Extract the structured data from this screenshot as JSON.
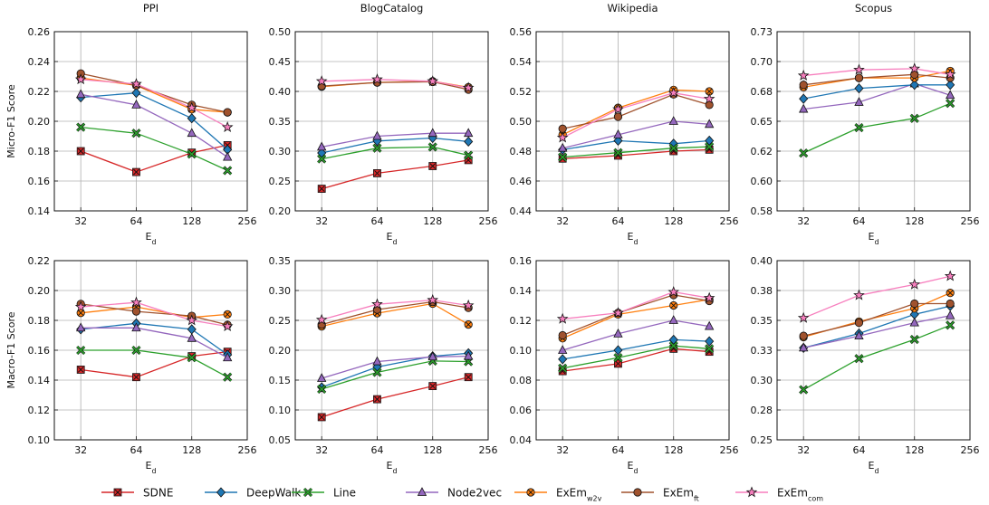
{
  "series_styles": [
    {
      "name": "SDNE",
      "color": "#d62728",
      "marker": "square-x"
    },
    {
      "name": "DeepWalk",
      "color": "#1f77b4",
      "marker": "diamond"
    },
    {
      "name": "Line",
      "color": "#2ca02c",
      "marker": "x"
    },
    {
      "name": "Node2vec",
      "color": "#9467bd",
      "marker": "triangle"
    },
    {
      "name": "ExEm",
      "sub": "w2v",
      "color": "#ff7f0e",
      "marker": "circle-x"
    },
    {
      "name": "ExEm",
      "sub": "ft",
      "color": "#a0522d",
      "marker": "circle"
    },
    {
      "name": "ExEm",
      "sub": "com",
      "color": "#f77fbe",
      "marker": "star"
    }
  ],
  "xlabel": {
    "main": "E",
    "sub": "d"
  },
  "chart_data": [
    {
      "type": "line",
      "title": "PPI",
      "ylabel": "Micro-F1 Score",
      "x": [
        32,
        64,
        128,
        200
      ],
      "xticks": [
        32,
        64,
        128,
        256
      ],
      "xscale": "log2",
      "xlim": [
        23,
        256
      ],
      "ylim": [
        0.14,
        0.26
      ],
      "yticks": [
        "0.14",
        "0.16",
        "0.18",
        "0.20",
        "0.22",
        "0.24",
        "0.26"
      ],
      "grid": true,
      "series": [
        {
          "name": "SDNE",
          "values": [
            0.18,
            0.166,
            0.179,
            0.184
          ]
        },
        {
          "name": "DeepWalk",
          "values": [
            0.216,
            0.219,
            0.202,
            0.181
          ]
        },
        {
          "name": "Line",
          "values": [
            0.196,
            0.192,
            0.178,
            0.167
          ]
        },
        {
          "name": "Node2vec",
          "values": [
            0.218,
            0.211,
            0.192,
            0.176
          ]
        },
        {
          "name": "ExEm w2v",
          "values": [
            0.229,
            0.224,
            0.208,
            0.206
          ]
        },
        {
          "name": "ExEm ft",
          "values": [
            0.232,
            0.224,
            0.211,
            0.206
          ]
        },
        {
          "name": "ExEm com",
          "values": [
            0.228,
            0.225,
            0.209,
            0.196
          ]
        }
      ]
    },
    {
      "type": "line",
      "title": "BlogCatalog",
      "ylabel": "",
      "x": [
        32,
        64,
        128,
        200
      ],
      "xticks": [
        32,
        64,
        128,
        256
      ],
      "xscale": "log2",
      "xlim": [
        23,
        256
      ],
      "ylim": [
        0.2,
        0.5
      ],
      "yticks": [
        "0.20",
        "0.25",
        "0.30",
        "0.35",
        "0.40",
        "0.45",
        "0.50"
      ],
      "grid": true,
      "series": [
        {
          "name": "SDNE",
          "values": [
            0.237,
            0.263,
            0.275,
            0.285
          ]
        },
        {
          "name": "DeepWalk",
          "values": [
            0.297,
            0.317,
            0.322,
            0.316
          ]
        },
        {
          "name": "Line",
          "values": [
            0.287,
            0.305,
            0.307,
            0.293
          ]
        },
        {
          "name": "Node2vec",
          "values": [
            0.307,
            0.325,
            0.33,
            0.33
          ]
        },
        {
          "name": "ExEm w2v",
          "values": [
            0.408,
            0.415,
            0.417,
            0.407
          ]
        },
        {
          "name": "ExEm ft",
          "values": [
            0.409,
            0.415,
            0.416,
            0.403
          ]
        },
        {
          "name": "ExEm com",
          "values": [
            0.417,
            0.42,
            0.417,
            0.406
          ]
        }
      ]
    },
    {
      "type": "line",
      "title": "Wikipedia",
      "ylabel": "",
      "x": [
        32,
        64,
        128,
        200
      ],
      "xticks": [
        32,
        64,
        128,
        256
      ],
      "xscale": "log2",
      "xlim": [
        23,
        256
      ],
      "ylim": [
        0.44,
        0.56
      ],
      "yticks": [
        "0.44",
        "0.46",
        "0.48",
        "0.50",
        "0.52",
        "0.54",
        "0.56"
      ],
      "grid": true,
      "series": [
        {
          "name": "SDNE",
          "values": [
            0.475,
            0.477,
            0.48,
            0.481
          ]
        },
        {
          "name": "DeepWalk",
          "values": [
            0.481,
            0.487,
            0.485,
            0.487
          ]
        },
        {
          "name": "Line",
          "values": [
            0.476,
            0.479,
            0.482,
            0.483
          ]
        },
        {
          "name": "Node2vec",
          "values": [
            0.482,
            0.491,
            0.5,
            0.498
          ]
        },
        {
          "name": "ExEm w2v",
          "values": [
            0.491,
            0.509,
            0.521,
            0.52
          ]
        },
        {
          "name": "ExEm ft",
          "values": [
            0.495,
            0.503,
            0.518,
            0.511
          ]
        },
        {
          "name": "ExEm com",
          "values": [
            0.489,
            0.508,
            0.519,
            0.515
          ]
        }
      ]
    },
    {
      "type": "line",
      "title": "Scopus",
      "ylabel": "",
      "x": [
        32,
        64,
        128,
        200
      ],
      "xticks": [
        32,
        64,
        128,
        256
      ],
      "xscale": "log2",
      "xlim": [
        23,
        256
      ],
      "ylim": [
        0.575,
        0.73
      ],
      "yticks": [
        "0.58",
        "0.60",
        "0.62",
        "0.65",
        "0.68",
        "0.70",
        "0.73"
      ],
      "grid": true,
      "series": [
        {
          "name": "Line",
          "values": [
            0.625,
            0.647,
            0.655,
            0.668
          ]
        },
        {
          "name": "Node2vec",
          "values": [
            0.663,
            0.669,
            0.685,
            0.675
          ]
        },
        {
          "name": "DeepWalk",
          "values": [
            0.672,
            0.681,
            0.684,
            0.684
          ]
        },
        {
          "name": "ExEm w2v",
          "values": [
            0.682,
            0.69,
            0.69,
            0.696
          ]
        },
        {
          "name": "ExEm ft",
          "values": [
            0.684,
            0.69,
            0.693,
            0.69
          ]
        },
        {
          "name": "ExEm com",
          "values": [
            0.692,
            0.697,
            0.698,
            0.693
          ]
        }
      ]
    },
    {
      "type": "line",
      "title": "",
      "ylabel": "Macro-F1 Score",
      "x": [
        32,
        64,
        128,
        200
      ],
      "xticks": [
        32,
        64,
        128,
        256
      ],
      "xscale": "log2",
      "xlim": [
        23,
        256
      ],
      "ylim": [
        0.1,
        0.22
      ],
      "yticks": [
        "0.10",
        "0.12",
        "0.14",
        "0.16",
        "0.18",
        "0.20",
        "0.22"
      ],
      "grid": true,
      "series": [
        {
          "name": "SDNE",
          "values": [
            0.147,
            0.142,
            0.156,
            0.159
          ]
        },
        {
          "name": "DeepWalk",
          "values": [
            0.174,
            0.178,
            0.174,
            0.157
          ]
        },
        {
          "name": "Line",
          "values": [
            0.16,
            0.16,
            0.155,
            0.142
          ]
        },
        {
          "name": "Node2vec",
          "values": [
            0.175,
            0.175,
            0.168,
            0.155
          ]
        },
        {
          "name": "ExEm w2v",
          "values": [
            0.185,
            0.189,
            0.182,
            0.184
          ]
        },
        {
          "name": "ExEm ft",
          "values": [
            0.191,
            0.186,
            0.183,
            0.177
          ]
        },
        {
          "name": "ExEm com",
          "values": [
            0.189,
            0.192,
            0.18,
            0.176
          ]
        }
      ]
    },
    {
      "type": "line",
      "title": "",
      "ylabel": "",
      "x": [
        32,
        64,
        128,
        200
      ],
      "xticks": [
        32,
        64,
        128,
        256
      ],
      "xscale": "log2",
      "xlim": [
        23,
        256
      ],
      "ylim": [
        0.05,
        0.35
      ],
      "yticks": [
        "0.05",
        "0.10",
        "0.15",
        "0.20",
        "0.25",
        "0.30",
        "0.35"
      ],
      "grid": true,
      "series": [
        {
          "name": "SDNE",
          "values": [
            0.088,
            0.118,
            0.14,
            0.155
          ]
        },
        {
          "name": "DeepWalk",
          "values": [
            0.138,
            0.172,
            0.19,
            0.195
          ]
        },
        {
          "name": "Line",
          "values": [
            0.135,
            0.163,
            0.182,
            0.181
          ]
        },
        {
          "name": "Node2vec",
          "values": [
            0.153,
            0.181,
            0.189,
            0.19
          ]
        },
        {
          "name": "ExEm w2v",
          "values": [
            0.24,
            0.262,
            0.278,
            0.243
          ]
        },
        {
          "name": "ExEm ft",
          "values": [
            0.243,
            0.268,
            0.281,
            0.271
          ]
        },
        {
          "name": "ExEm com",
          "values": [
            0.251,
            0.277,
            0.284,
            0.275
          ]
        }
      ]
    },
    {
      "type": "line",
      "title": "",
      "ylabel": "",
      "x": [
        32,
        64,
        128,
        200
      ],
      "xticks": [
        32,
        64,
        128,
        256
      ],
      "xscale": "log2",
      "xlim": [
        23,
        256
      ],
      "ylim": [
        0.04,
        0.16
      ],
      "yticks": [
        "0.04",
        "0.06",
        "0.08",
        "0.10",
        "0.12",
        "0.14",
        "0.16"
      ],
      "grid": true,
      "series": [
        {
          "name": "SDNE",
          "values": [
            0.086,
            0.091,
            0.101,
            0.099
          ]
        },
        {
          "name": "DeepWalk",
          "values": [
            0.094,
            0.1,
            0.107,
            0.106
          ]
        },
        {
          "name": "Line",
          "values": [
            0.088,
            0.095,
            0.103,
            0.101
          ]
        },
        {
          "name": "Node2vec",
          "values": [
            0.1,
            0.111,
            0.12,
            0.116
          ]
        },
        {
          "name": "ExEm w2v",
          "values": [
            0.108,
            0.124,
            0.13,
            0.134
          ]
        },
        {
          "name": "ExEm ft",
          "values": [
            0.11,
            0.125,
            0.137,
            0.133
          ]
        },
        {
          "name": "ExEm com",
          "values": [
            0.121,
            0.125,
            0.139,
            0.135
          ]
        }
      ]
    },
    {
      "type": "line",
      "title": "",
      "ylabel": "",
      "x": [
        32,
        64,
        128,
        200
      ],
      "xticks": [
        32,
        64,
        128,
        256
      ],
      "xscale": "log2",
      "xlim": [
        23,
        256
      ],
      "ylim": [
        0.25,
        0.4
      ],
      "yticks": [
        "0.25",
        "0.28",
        "0.30",
        "0.33",
        "0.35",
        "0.38",
        "0.40"
      ],
      "grid": true,
      "series": [
        {
          "name": "Line",
          "values": [
            0.292,
            0.318,
            0.334,
            0.346
          ]
        },
        {
          "name": "DeepWalk",
          "values": [
            0.327,
            0.339,
            0.355,
            0.362
          ]
        },
        {
          "name": "Node2vec",
          "values": [
            0.327,
            0.337,
            0.348,
            0.354
          ]
        },
        {
          "name": "ExEm w2v",
          "values": [
            0.336,
            0.349,
            0.36,
            0.373
          ]
        },
        {
          "name": "ExEm ft",
          "values": [
            0.337,
            0.348,
            0.364,
            0.364
          ]
        },
        {
          "name": "ExEm com",
          "values": [
            0.352,
            0.371,
            0.38,
            0.387
          ]
        }
      ]
    }
  ]
}
